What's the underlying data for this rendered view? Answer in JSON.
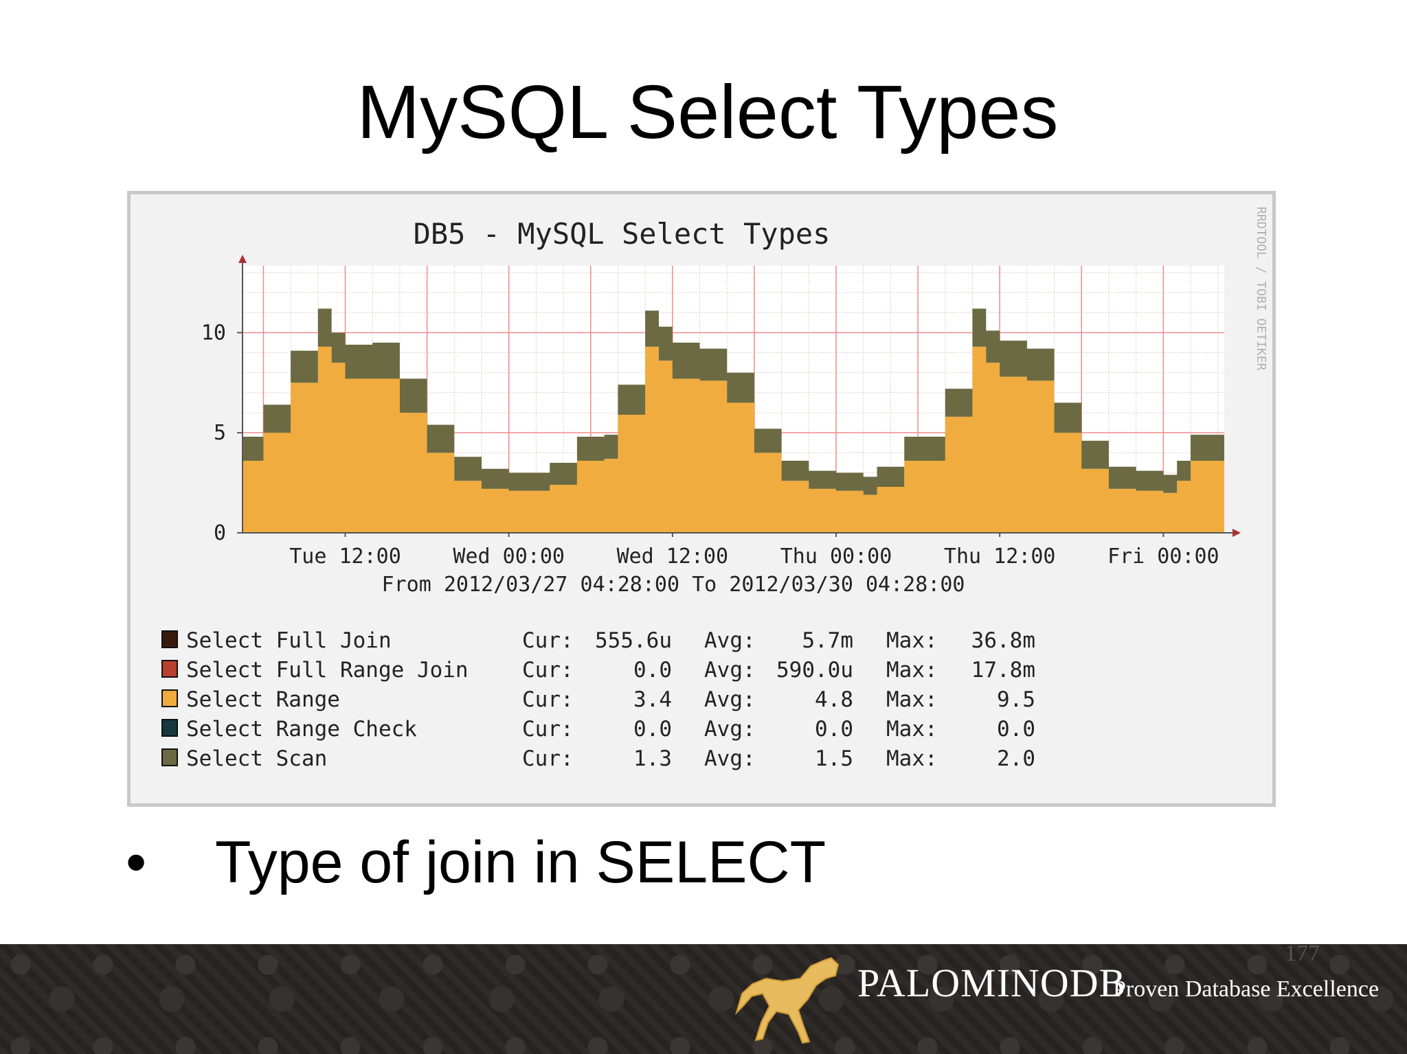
{
  "slide": {
    "title": "MySQL Select Types",
    "bullet_marker": "•",
    "bullet": "Type of join in SELECT",
    "page_number": "177",
    "brand": "PALOMINODB",
    "tagline": "Proven Database Excellence",
    "logo_icon": "horse-logo-icon"
  },
  "chart_data": {
    "type": "area",
    "title": "DB5 - MySQL Select Types",
    "vertical_label": "RRDTOOL / TOBI OETIKER",
    "time_range": "From 2012/03/27 04:28:00 To 2012/03/30 04:28:00",
    "x_ticks": [
      "Tue 12:00",
      "Wed 00:00",
      "Wed 12:00",
      "Thu 00:00",
      "Thu 12:00",
      "Fri 00:00"
    ],
    "x_start": "2012-03-27 04:28",
    "x_end": "2012-03-30 04:28",
    "y_ticks": [
      0,
      5,
      10
    ],
    "ylim": [
      0,
      13
    ],
    "stacked": true,
    "grid": true,
    "colors": {
      "background": "#f2f2f2",
      "canvas": "#ffffff",
      "major_grid": "#f08a8a",
      "minor_grid": "#e8c6c6",
      "axis": "#555555",
      "arrow": "#a83232"
    },
    "times": [
      "2012-03-27 04:28",
      "2012-03-27 06:00",
      "2012-03-27 08:00",
      "2012-03-27 10:00",
      "2012-03-27 11:00",
      "2012-03-27 12:00",
      "2012-03-27 14:00",
      "2012-03-27 16:00",
      "2012-03-27 18:00",
      "2012-03-27 20:00",
      "2012-03-27 22:00",
      "2012-03-28 00:00",
      "2012-03-28 02:00",
      "2012-03-28 03:00",
      "2012-03-28 05:00",
      "2012-03-28 07:00",
      "2012-03-28 08:00",
      "2012-03-28 10:00",
      "2012-03-28 11:00",
      "2012-03-28 12:00",
      "2012-03-28 14:00",
      "2012-03-28 16:00",
      "2012-03-28 18:00",
      "2012-03-28 20:00",
      "2012-03-28 22:00",
      "2012-03-29 00:00",
      "2012-03-29 02:00",
      "2012-03-29 03:00",
      "2012-03-29 05:00",
      "2012-03-29 07:00",
      "2012-03-29 08:00",
      "2012-03-29 10:00",
      "2012-03-29 11:00",
      "2012-03-29 12:00",
      "2012-03-29 14:00",
      "2012-03-29 16:00",
      "2012-03-29 18:00",
      "2012-03-29 20:00",
      "2012-03-29 22:00",
      "2012-03-30 00:00",
      "2012-03-30 01:00",
      "2012-03-30 02:00",
      "2012-03-30 04:28"
    ],
    "series": [
      {
        "name": "Select Full Join",
        "color": "#3a1a0c",
        "values": [
          0,
          0,
          0,
          0,
          0,
          0,
          0,
          0,
          0,
          0,
          0,
          0,
          0,
          0,
          0,
          0,
          0,
          0,
          0,
          0,
          0,
          0,
          0,
          0,
          0,
          0,
          0,
          0,
          0,
          0,
          0,
          0,
          0,
          0,
          0,
          0,
          0,
          0,
          0,
          0,
          0,
          0,
          0
        ]
      },
      {
        "name": "Select Full Range Join",
        "color": "#b8402e",
        "values": [
          0,
          0,
          0,
          0,
          0,
          0,
          0,
          0,
          0,
          0,
          0,
          0,
          0,
          0,
          0,
          0,
          0,
          0,
          0,
          0,
          0,
          0,
          0,
          0,
          0,
          0,
          0,
          0,
          0,
          0,
          0,
          0,
          0,
          0,
          0,
          0,
          0,
          0,
          0,
          0,
          0,
          0,
          0
        ]
      },
      {
        "name": "Select Range",
        "color": "#f0ac3e",
        "values": [
          3.6,
          5.0,
          7.5,
          9.3,
          8.5,
          7.7,
          7.7,
          6.0,
          4.0,
          2.6,
          2.2,
          2.1,
          2.1,
          2.4,
          3.6,
          3.7,
          5.9,
          9.3,
          8.6,
          7.7,
          7.6,
          6.5,
          4.0,
          2.6,
          2.2,
          2.1,
          1.9,
          2.3,
          3.6,
          3.6,
          5.8,
          9.3,
          8.5,
          7.8,
          7.6,
          5.0,
          3.2,
          2.2,
          2.1,
          2.0,
          2.6,
          3.6,
          3.4
        ]
      },
      {
        "name": "Select Range Check",
        "color": "#16383f",
        "values": [
          0,
          0,
          0,
          0,
          0,
          0,
          0,
          0,
          0,
          0,
          0,
          0,
          0,
          0,
          0,
          0,
          0,
          0,
          0,
          0,
          0,
          0,
          0,
          0,
          0,
          0,
          0,
          0,
          0,
          0,
          0,
          0,
          0,
          0,
          0,
          0,
          0,
          0,
          0,
          0,
          0,
          0,
          0
        ]
      },
      {
        "name": "Select Scan",
        "color": "#6b6a43",
        "values": [
          1.2,
          1.4,
          1.6,
          1.9,
          1.5,
          1.7,
          1.8,
          1.7,
          1.4,
          1.2,
          1.0,
          0.9,
          0.9,
          1.1,
          1.2,
          1.2,
          1.5,
          1.8,
          1.7,
          1.8,
          1.6,
          1.5,
          1.2,
          1.0,
          0.9,
          0.9,
          0.9,
          1.0,
          1.2,
          1.2,
          1.4,
          1.9,
          1.6,
          1.8,
          1.6,
          1.5,
          1.4,
          1.1,
          1.0,
          0.9,
          1.0,
          1.3,
          1.3
        ]
      }
    ],
    "legend": [
      {
        "name": "Select Full Join",
        "color": "#3a1a0c",
        "cur_label": "Cur:",
        "cur": "555.6u",
        "avg_label": "Avg:",
        "avg": "5.7m",
        "max_label": "Max:",
        "max": "36.8m"
      },
      {
        "name": "Select Full Range Join",
        "color": "#b8402e",
        "cur_label": "Cur:",
        "cur": "0.0",
        "avg_label": "Avg:",
        "avg": "590.0u",
        "max_label": "Max:",
        "max": "17.8m"
      },
      {
        "name": "Select Range",
        "color": "#f0ac3e",
        "cur_label": "Cur:",
        "cur": "3.4",
        "avg_label": "Avg:",
        "avg": "4.8",
        "max_label": "Max:",
        "max": "9.5"
      },
      {
        "name": "Select Range Check",
        "color": "#16383f",
        "cur_label": "Cur:",
        "cur": "0.0",
        "avg_label": "Avg:",
        "avg": "0.0",
        "max_label": "Max:",
        "max": "0.0"
      },
      {
        "name": "Select Scan",
        "color": "#6b6a43",
        "cur_label": "Cur:",
        "cur": "1.3",
        "avg_label": "Avg:",
        "avg": "1.5",
        "max_label": "Max:",
        "max": "2.0"
      }
    ],
    "legend_placement": "bottom"
  }
}
